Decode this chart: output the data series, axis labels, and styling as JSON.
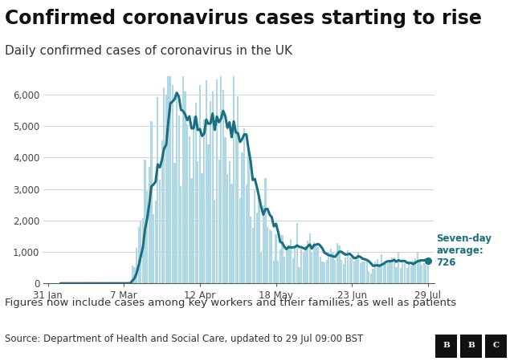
{
  "title": "Confirmed coronavirus cases starting to rise",
  "subtitle": "Daily confirmed cases of coronavirus in the UK",
  "footnote": "Figures now include cases among key workers and their families, as well as patients",
  "source": "Source: Department of Health and Social Care, updated to 29 Jul 09:00 BST",
  "bar_color": "#afd8e6",
  "line_color": "#1a6e7e",
  "annotation_color": "#1a6e7e",
  "ylabel_values": [
    0,
    1000,
    2000,
    3000,
    4000,
    5000,
    6000
  ],
  "ytick_labels": [
    "0",
    "1,000",
    "2,000",
    "3,000",
    "4,000",
    "5,000",
    "6,000"
  ],
  "xtick_labels": [
    "31 Jan",
    "7 Mar",
    "12 Apr",
    "18 May",
    "23 Jun",
    "29 Jul"
  ],
  "ylim": [
    0,
    6600
  ],
  "background_color": "#ffffff",
  "grid_color": "#cccccc",
  "title_fontsize": 17,
  "subtitle_fontsize": 11,
  "footnote_fontsize": 9.5,
  "source_fontsize": 8.5
}
